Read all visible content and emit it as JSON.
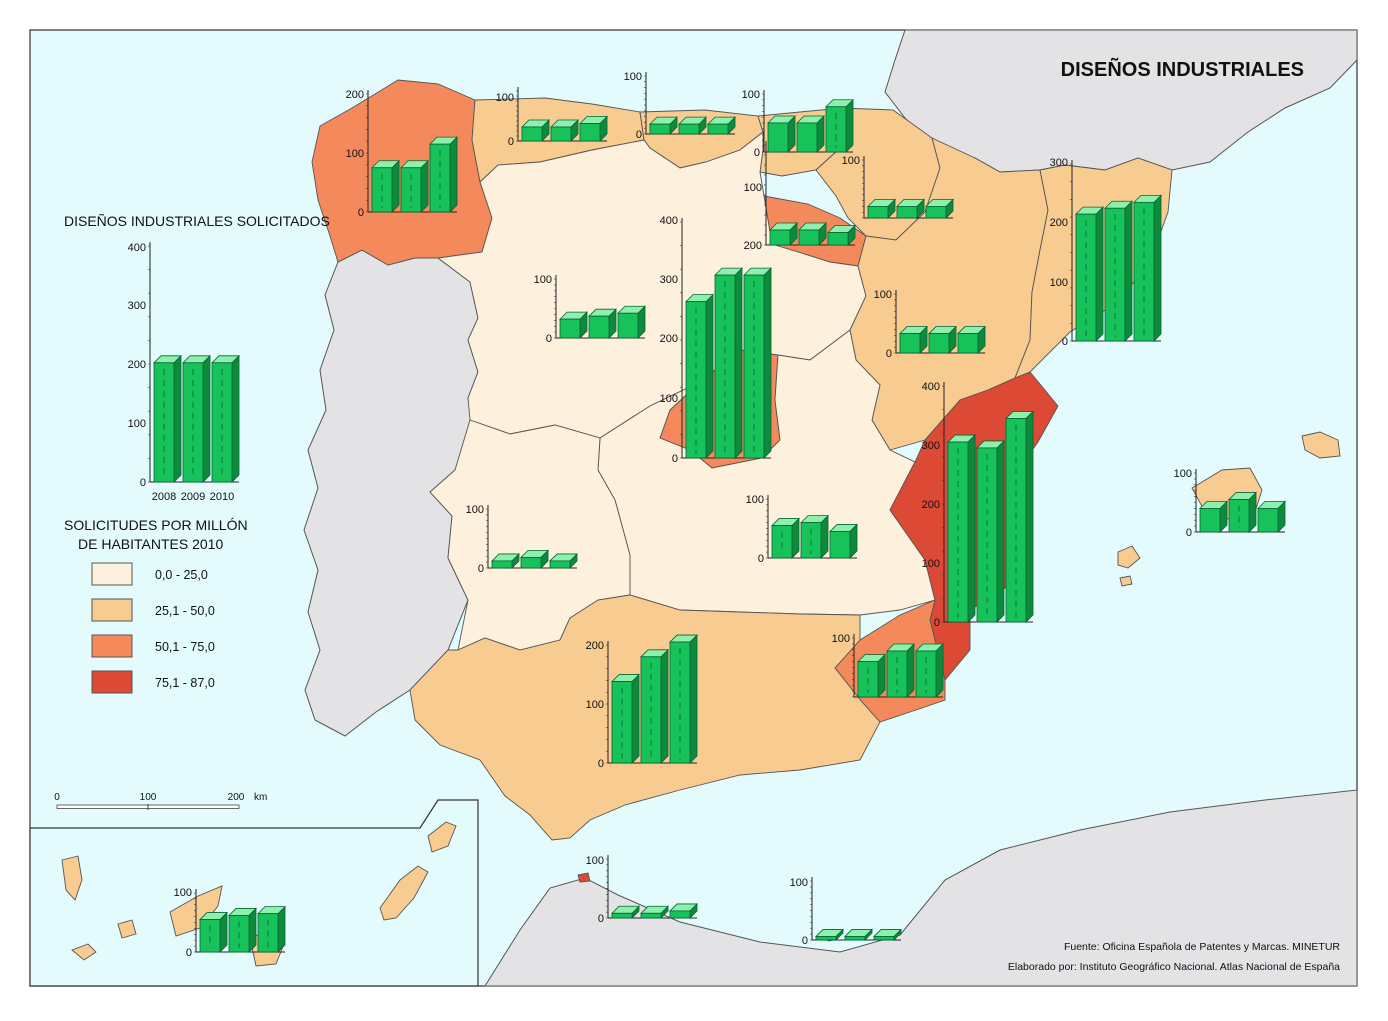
{
  "map": {
    "title": "DISEÑOS INDUSTRIALES",
    "credits": {
      "source": "Fuente: Oficina Española de Patentes y Marcas. MINETUR",
      "author": "Elaborado por: Instituto Geográfico Nacional. Atlas Nacional de España"
    },
    "colors": {
      "sea": "#e3fbfd",
      "other_land": "#e3e3e6",
      "bar_front": "#18c25a",
      "bar_top": "#8ff0ad",
      "bar_side": "#0f8a3c"
    }
  },
  "legend": {
    "chart_title": "DISEÑOS INDUSTRIALES SOLICITADOS",
    "chart_ticks": [
      "0",
      "100",
      "200",
      "300",
      "400"
    ],
    "years": [
      "2008",
      "2009",
      "2010"
    ],
    "rate_title_1": "SOLICITUDES POR MILLÓN",
    "rate_title_2": "DE HABITANTES 2010",
    "classes": [
      {
        "label": "0,0 - 25,0",
        "color": "#fdf0dc"
      },
      {
        "label": "25,1 - 50,0",
        "color": "#f8cb90"
      },
      {
        "label": "50,1 - 75,0",
        "color": "#f48a5c"
      },
      {
        "label": "75,1 - 87,0",
        "color": "#dc4a35"
      }
    ]
  },
  "scale_bar": {
    "ticks": [
      "0",
      "100",
      "200"
    ],
    "unit": "km"
  },
  "chart_data": {
    "type": "bar",
    "categories": [
      "2008",
      "2009",
      "2010"
    ],
    "legend_sample": [
      202,
      202,
      202
    ],
    "regions": [
      {
        "name": "Galicia",
        "values": [
          75,
          75,
          115
        ]
      },
      {
        "name": "Asturias",
        "values": [
          28,
          28,
          35
        ]
      },
      {
        "name": "Cantabria",
        "values": [
          17,
          17,
          17
        ]
      },
      {
        "name": "País Vasco",
        "values": [
          50,
          50,
          78
        ]
      },
      {
        "name": "Navarra",
        "values": [
          20,
          20,
          20
        ]
      },
      {
        "name": "La Rioja",
        "values": [
          30,
          30,
          25
        ]
      },
      {
        "name": "Cataluña",
        "values": [
          215,
          225,
          235
        ]
      },
      {
        "name": "Aragón",
        "values": [
          33,
          33,
          33
        ]
      },
      {
        "name": "Castilla y León",
        "values": [
          32,
          37,
          42
        ]
      },
      {
        "name": "Comunidad de Madrid",
        "values": [
          265,
          310,
          310
        ]
      },
      {
        "name": "Extremadura",
        "values": [
          12,
          18,
          12
        ]
      },
      {
        "name": "Castilla-La Mancha",
        "values": [
          55,
          60,
          45
        ]
      },
      {
        "name": "Comunitat Valenciana",
        "values": [
          305,
          295,
          345
        ]
      },
      {
        "name": "Illes Balears",
        "values": [
          40,
          55,
          40
        ]
      },
      {
        "name": "Región de Murcia",
        "values": [
          60,
          78,
          78
        ]
      },
      {
        "name": "Andalucía",
        "values": [
          138,
          180,
          205
        ]
      },
      {
        "name": "Canarias",
        "values": [
          55,
          62,
          65
        ]
      },
      {
        "name": "Ceuta",
        "values": [
          8,
          8,
          12
        ]
      },
      {
        "name": "Melilla",
        "values": [
          6,
          6,
          6
        ]
      }
    ]
  }
}
